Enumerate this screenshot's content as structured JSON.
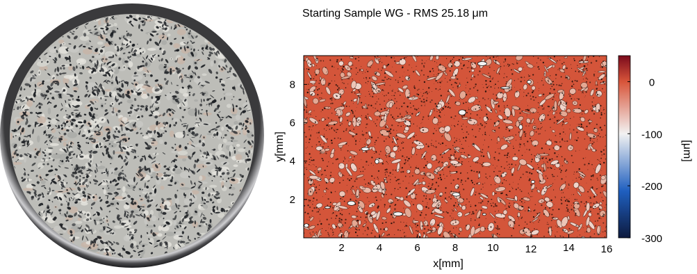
{
  "photo": {
    "label": "",
    "icon": "granite-sample-disc-photo",
    "colors": {
      "rim": "#2a2a2c",
      "rim_highlight": "#d8d8da",
      "mineral_light": "#c9c9c5",
      "mineral_dark": "#1f2226",
      "mineral_pink": "#c8b4a6"
    }
  },
  "chart_data": {
    "type": "heatmap",
    "title": "Starting Sample WG  -  RMS 25.18 μm",
    "xlabel": "x[mm]",
    "ylabel": "y[mm]",
    "xlim": [
      0,
      16
    ],
    "ylim": [
      0,
      9.5
    ],
    "xticks": [
      2,
      4,
      6,
      8,
      10,
      12,
      14,
      16
    ],
    "yticks": [
      2,
      4,
      6,
      8
    ],
    "colorbar": {
      "label": "[μm]",
      "range": [
        -300,
        50
      ],
      "ticks": [
        0,
        -100,
        -200,
        -300
      ],
      "colormap": [
        "#0d1a3e",
        "#1f5fbf",
        "#f2f2f2",
        "#d8553a",
        "#7a0a1c"
      ],
      "colormap_stops": [
        -300,
        -210,
        -100,
        0,
        50
      ]
    },
    "rms_um": 25.18,
    "dominant_value_um": 0,
    "secondary_value_um": -50,
    "texture": "granite surface height map with dark contour lines around grain boundaries"
  }
}
